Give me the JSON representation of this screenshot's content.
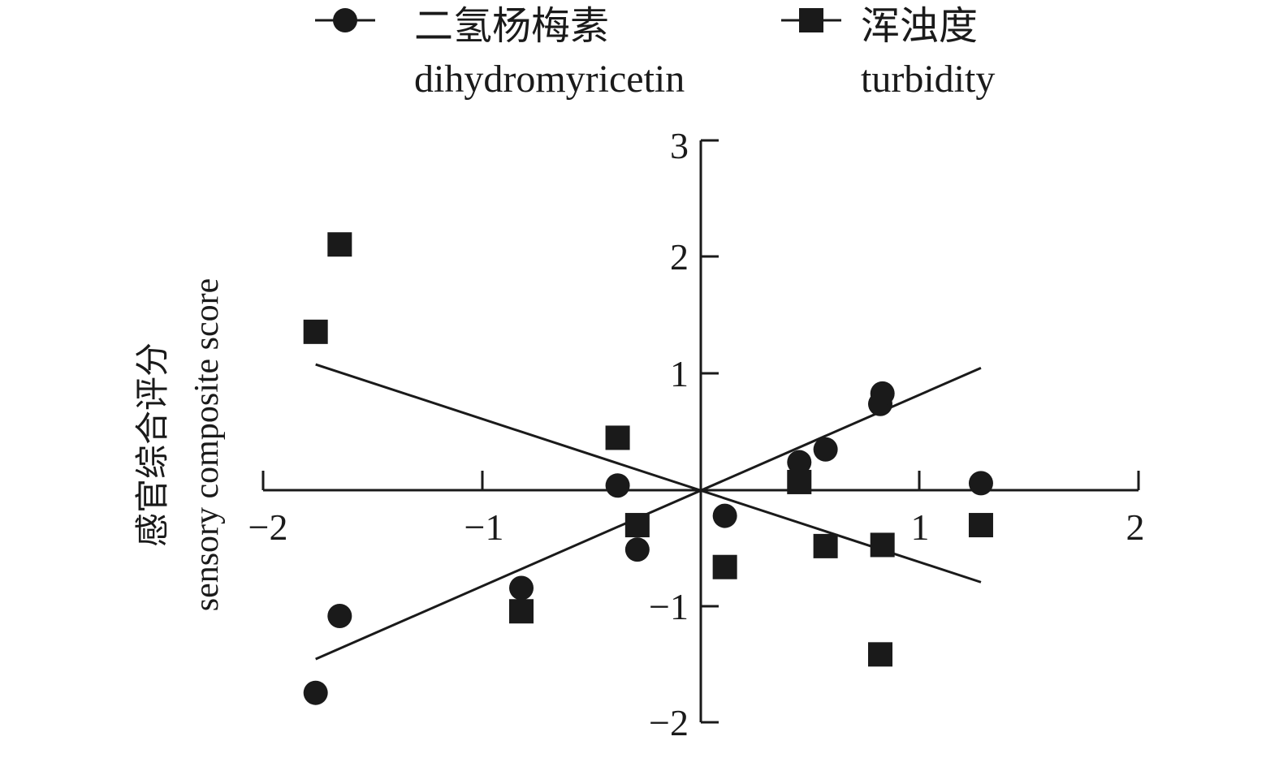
{
  "chart_data": {
    "type": "scatter",
    "xlim": [
      -2,
      2
    ],
    "ylim": [
      -2,
      3
    ],
    "x_ticks": [
      "−2",
      "−1",
      "1",
      "2"
    ],
    "y_ticks": [
      "−2",
      "−1",
      "1",
      "2",
      "3"
    ],
    "ylabel_cn": "感官综合评分",
    "ylabel_en": "sensory composite score",
    "legend_position": "top",
    "grid": false,
    "series": [
      {
        "name_cn": "二氢杨梅素",
        "name_en": "dihydromyricetin",
        "marker": "circle",
        "x": [
          -1.76,
          -1.65,
          -0.82,
          -0.38,
          -0.29,
          0.11,
          0.45,
          0.57,
          0.82,
          0.83,
          1.28
        ],
        "y": [
          -1.74,
          -1.08,
          -0.84,
          0.04,
          -0.51,
          -0.22,
          0.24,
          0.35,
          0.74,
          0.83,
          0.06
        ],
        "fit_line": {
          "x": [
            -1.76,
            1.28
          ],
          "y": [
            -1.45,
            1.05
          ]
        }
      },
      {
        "name_cn": "浑浊度",
        "name_en": "turbidity",
        "marker": "square",
        "x": [
          -1.76,
          -1.65,
          -0.82,
          -0.38,
          -0.29,
          0.11,
          0.45,
          0.57,
          0.82,
          0.83,
          1.28
        ],
        "y": [
          1.36,
          2.11,
          -1.04,
          0.45,
          -0.3,
          -0.66,
          0.07,
          -0.48,
          -1.41,
          -0.47,
          -0.3
        ],
        "fit_line": {
          "x": [
            -1.76,
            1.28
          ],
          "y": [
            1.08,
            -0.79
          ]
        }
      }
    ]
  }
}
